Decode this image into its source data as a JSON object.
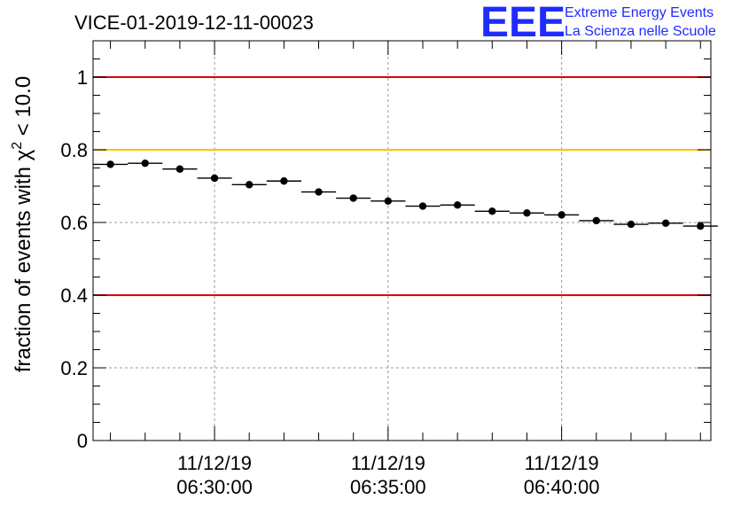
{
  "chart_data": {
    "type": "scatter",
    "title": "VICE-01-2019-12-11-00023",
    "ylabel_prefix": "fraction of events with ",
    "ylabel_symbol": "χ",
    "ylabel_exp": "2",
    "ylabel_suffix": " < 10.0",
    "xlabel": "",
    "ylim": [
      0,
      1.1
    ],
    "xlim_minutes": [
      0,
      17.8
    ],
    "grid": true,
    "ytick_values": [
      0,
      0.2,
      0.4,
      0.6,
      0.8,
      1
    ],
    "ytick_labels": [
      "0",
      "0.2",
      "0.4",
      "0.6",
      "0.8",
      "1"
    ],
    "xticks": [
      {
        "minute": 3.5,
        "date": "11/12/19",
        "time": "06:30:00"
      },
      {
        "minute": 8.5,
        "date": "11/12/19",
        "time": "06:35:00"
      },
      {
        "minute": 13.5,
        "date": "11/12/19",
        "time": "06:40:00"
      }
    ],
    "bin_width_minutes": 1,
    "series": [
      {
        "name": "fraction",
        "x_minutes": [
          0.5,
          1.5,
          2.5,
          3.5,
          4.5,
          5.5,
          6.5,
          7.5,
          8.5,
          9.5,
          10.5,
          11.5,
          12.5,
          13.5,
          14.5,
          15.5,
          16.5,
          17.5
        ],
        "values": [
          0.76,
          0.763,
          0.747,
          0.722,
          0.704,
          0.714,
          0.684,
          0.667,
          0.659,
          0.645,
          0.648,
          0.631,
          0.626,
          0.621,
          0.605,
          0.595,
          0.598,
          0.59
        ]
      }
    ],
    "reference_lines": [
      {
        "y": 1.0,
        "color": "#e00000"
      },
      {
        "y": 0.8,
        "color": "#ffc000"
      },
      {
        "y": 0.4,
        "color": "#e00000"
      }
    ]
  },
  "logo": {
    "mark": "EEE",
    "line1": "Extreme Energy Events",
    "line2": "La Scienza nelle Scuole",
    "color": "#1f2bff"
  }
}
